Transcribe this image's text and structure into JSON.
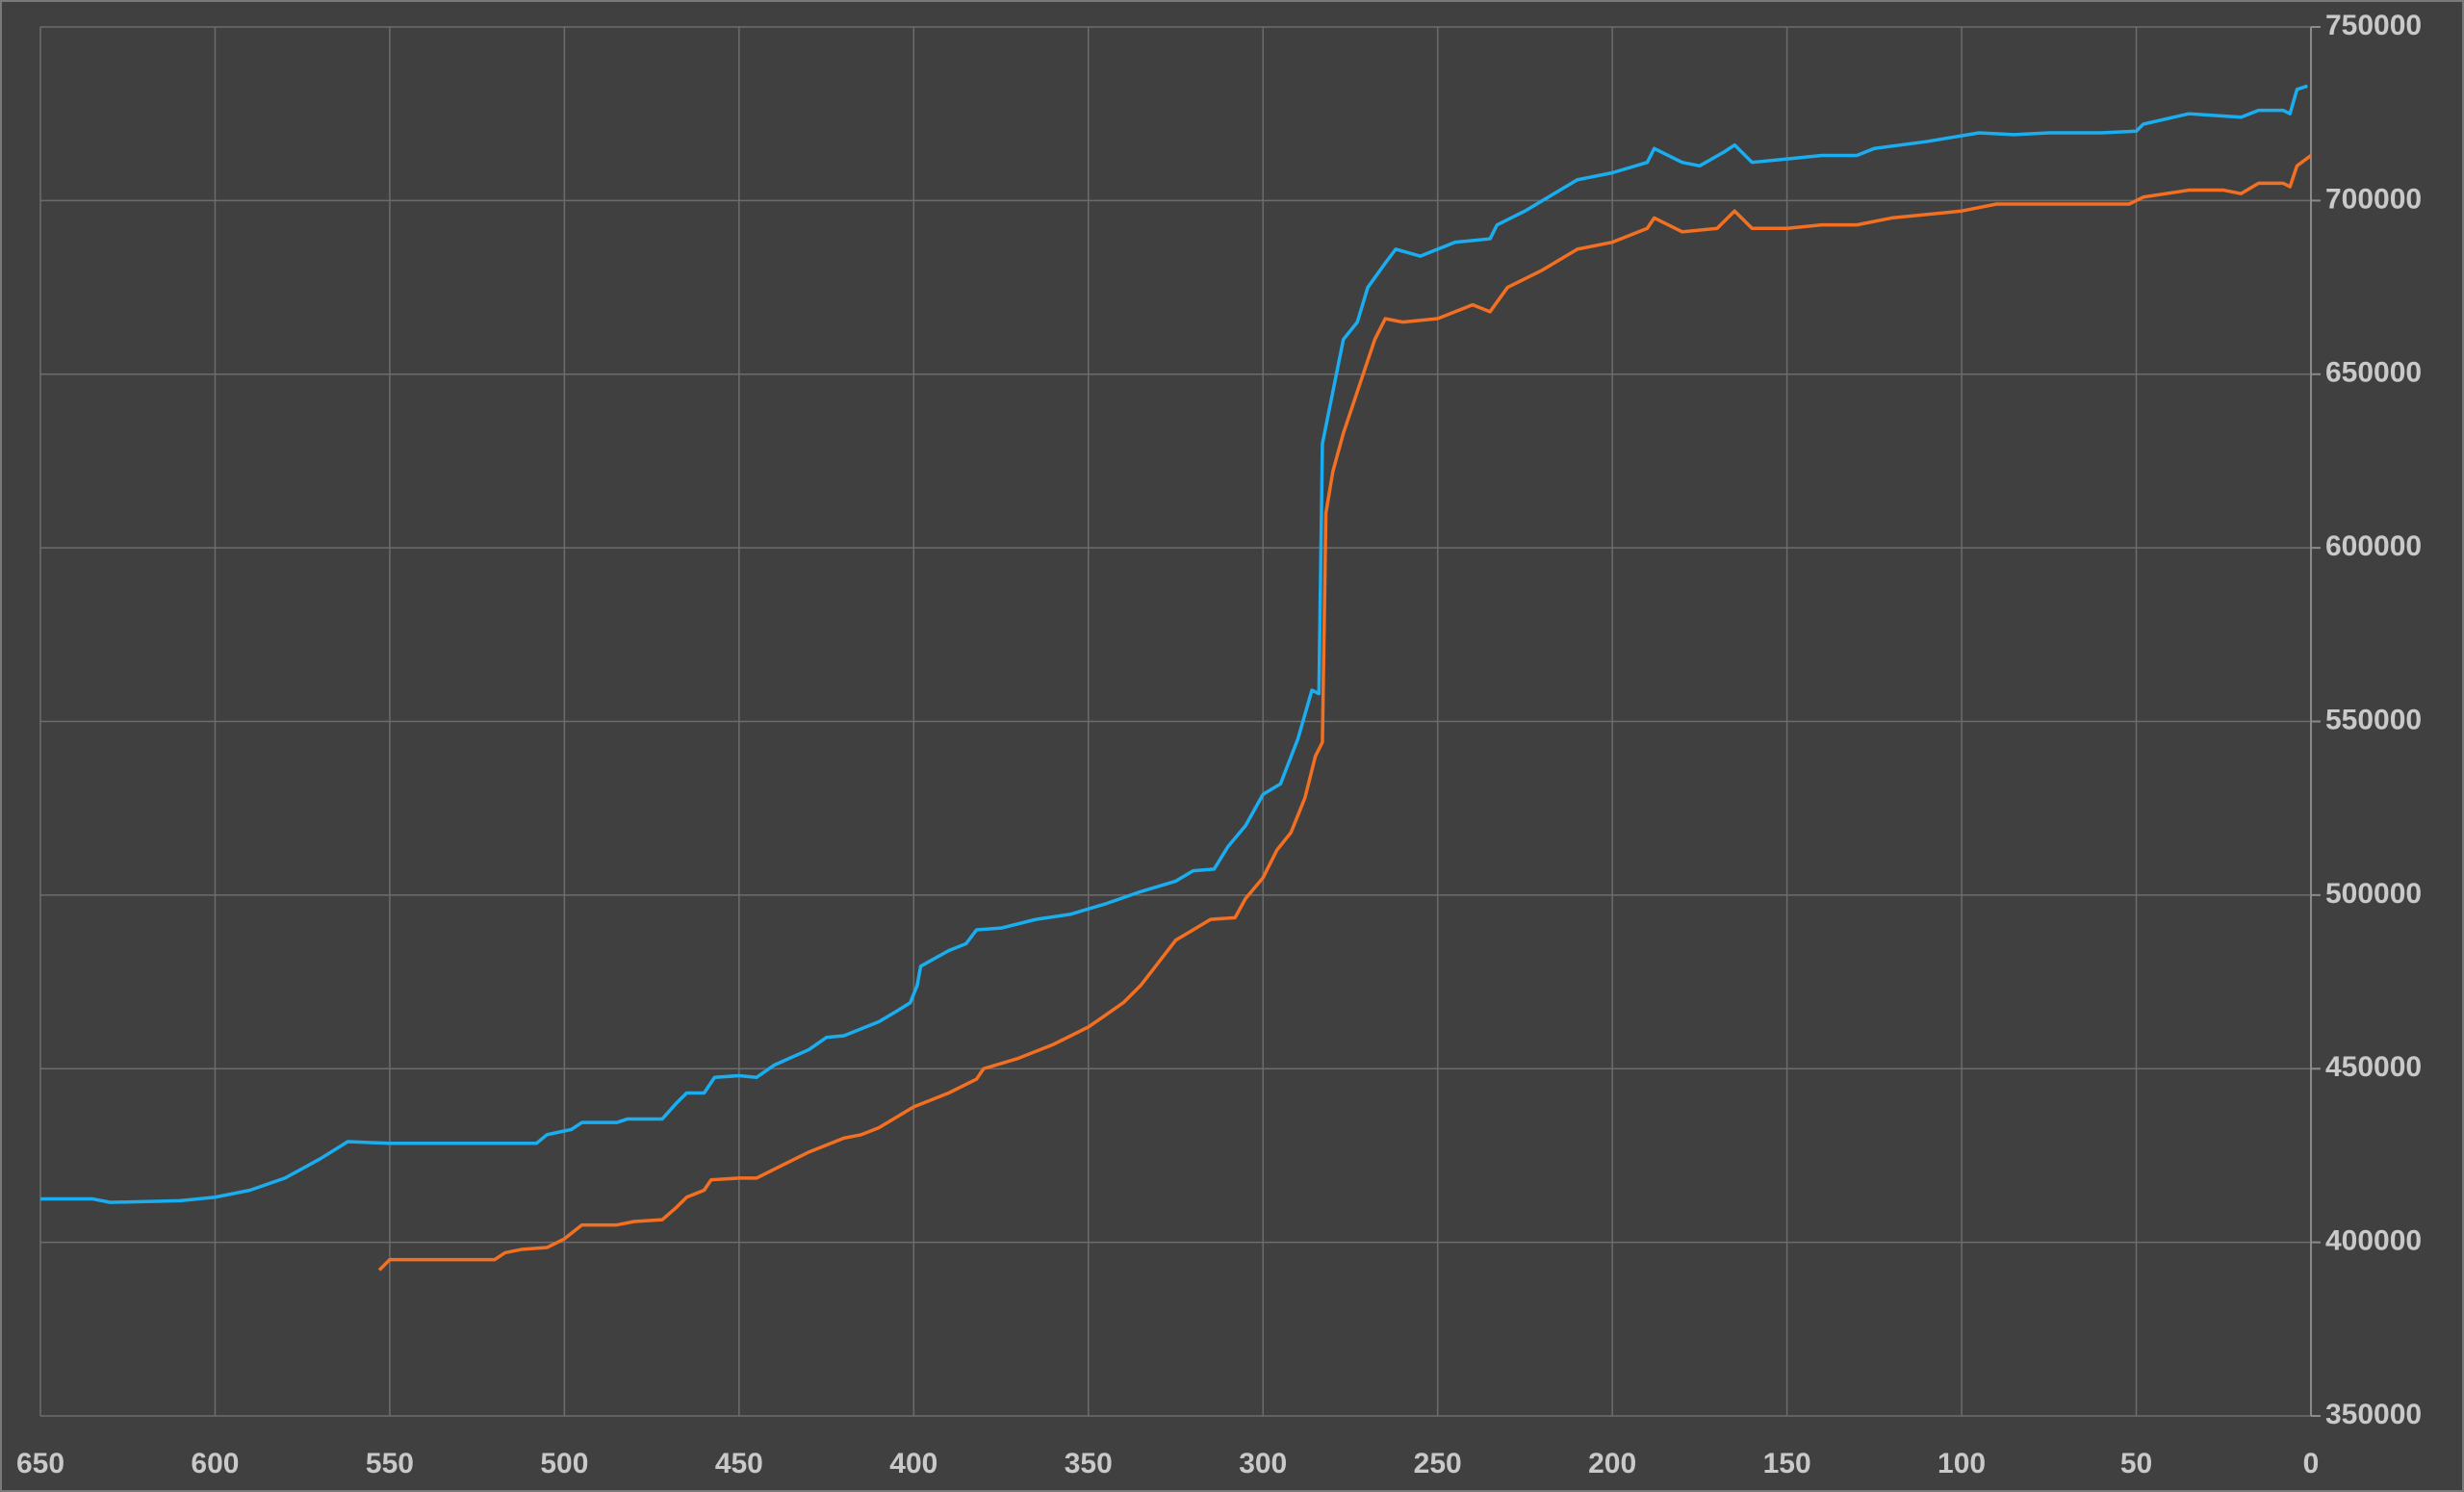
{
  "chart_data": {
    "type": "line",
    "xlim": [
      650,
      0
    ],
    "xticks": [
      650,
      600,
      550,
      500,
      450,
      400,
      350,
      300,
      250,
      200,
      150,
      100,
      50,
      0
    ],
    "ylim": [
      350000,
      750000
    ],
    "yticks": [
      350000,
      400000,
      450000,
      500000,
      550000,
      600000,
      650000,
      700000,
      750000
    ],
    "grid": true,
    "series": [
      {
        "color": "#1aaef0",
        "x": [
          650,
          635,
          630,
          610,
          600,
          590,
          580,
          570,
          562,
          550,
          508,
          505,
          498,
          495,
          485,
          482,
          472,
          468,
          465,
          460,
          457,
          450,
          445,
          440,
          430,
          425,
          420,
          415,
          410,
          405,
          401,
          399,
          398,
          390,
          385,
          382,
          375,
          365,
          355,
          345,
          335,
          325,
          320,
          314,
          310,
          305,
          300,
          295,
          290,
          286,
          284,
          283,
          280,
          277,
          273,
          270,
          265,
          262,
          255,
          245,
          235,
          233,
          225,
          220,
          210,
          200,
          190,
          188,
          180,
          175,
          168,
          165,
          160,
          150,
          140,
          130,
          125,
          110,
          95,
          85,
          75,
          60,
          50,
          48,
          35,
          20,
          15,
          8,
          6,
          4,
          1
        ],
        "values": [
          412500,
          412500,
          411500,
          412000,
          413000,
          415000,
          418500,
          424000,
          429000,
          428500,
          428500,
          431000,
          432500,
          434500,
          434500,
          435500,
          435500,
          440000,
          443000,
          443000,
          447500,
          448000,
          447500,
          451000,
          455500,
          459000,
          459500,
          461500,
          463500,
          466500,
          469000,
          474000,
          479500,
          484000,
          486000,
          490000,
          490500,
          493000,
          494500,
          497500,
          501000,
          504000,
          507000,
          507500,
          514000,
          520000,
          529000,
          532000,
          545000,
          559000,
          558000,
          630000,
          645000,
          660000,
          665000,
          675000,
          682000,
          686000,
          684000,
          688000,
          689000,
          693000,
          697000,
          700000,
          706000,
          708000,
          711000,
          715000,
          711000,
          710000,
          714000,
          716000,
          711000,
          712000,
          713000,
          713000,
          715000,
          717000,
          719500,
          719000,
          719500,
          719500,
          720000,
          722000,
          725000,
          724000,
          726000,
          726000,
          725000,
          732000,
          733000
        ]
      },
      {
        "color": "#f36f21",
        "x": [
          553,
          550,
          520,
          517,
          512,
          505,
          500,
          495,
          485,
          480,
          472,
          468,
          465,
          460,
          458,
          450,
          445,
          440,
          430,
          420,
          415,
          410,
          400,
          390,
          382,
          380,
          370,
          360,
          350,
          340,
          335,
          325,
          320,
          315,
          308,
          305,
          300,
          296,
          292,
          288,
          285,
          283,
          282,
          280,
          277,
          273,
          268,
          265,
          260,
          250,
          240,
          235,
          230,
          220,
          210,
          200,
          190,
          188,
          180,
          170,
          165,
          160,
          150,
          140,
          130,
          120,
          100,
          90,
          70,
          52,
          48,
          35,
          25,
          20,
          15,
          8,
          6,
          4,
          0
        ],
        "values": [
          392000,
          395000,
          395000,
          397000,
          398000,
          398500,
          401000,
          405000,
          405000,
          406000,
          406500,
          410000,
          413000,
          415000,
          418000,
          418500,
          418500,
          421000,
          426000,
          430000,
          431000,
          433000,
          439000,
          443000,
          447000,
          450000,
          453000,
          457000,
          462000,
          469000,
          474000,
          487000,
          490000,
          493000,
          493500,
          499000,
          505000,
          513000,
          518000,
          528000,
          540000,
          544000,
          610000,
          622000,
          633000,
          645000,
          660000,
          666000,
          665000,
          666000,
          670000,
          668000,
          675000,
          680000,
          686000,
          688000,
          692000,
          695000,
          691000,
          692000,
          697000,
          692000,
          692000,
          693000,
          693000,
          695000,
          697000,
          699000,
          699000,
          699000,
          701000,
          703000,
          703000,
          702000,
          705000,
          705000,
          704000,
          710000,
          713000
        ]
      }
    ]
  }
}
